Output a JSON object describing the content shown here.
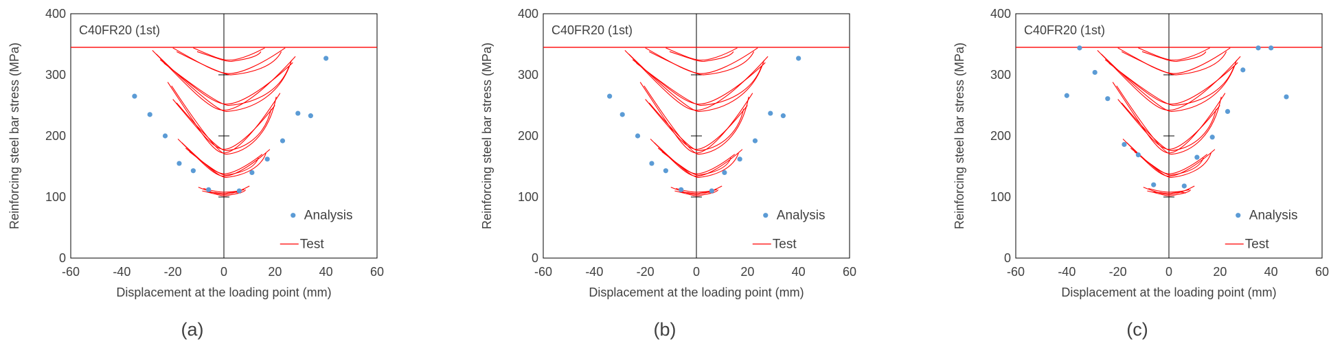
{
  "figure": {
    "panel_labels": [
      "(a)",
      "(b)",
      "(c)"
    ]
  },
  "chart_data": [
    {
      "type": "scatter",
      "panel": "(a)",
      "title": "C40FR20 (1st)",
      "xlabel": "Displacement at the loading point (mm)",
      "ylabel": "Reinforcing steel bar stress (MPa)",
      "xlim": [
        -60,
        60
      ],
      "ylim": [
        0,
        400
      ],
      "xticks": [
        -60,
        -40,
        -20,
        0,
        20,
        40,
        60
      ],
      "yticks": [
        0,
        100,
        200,
        300,
        400
      ],
      "yield_line": 345,
      "legend": [
        "Analysis",
        "Test"
      ],
      "legend_position": "bottom-right",
      "series": [
        {
          "name": "Analysis",
          "kind": "markers",
          "color": "#5b9bd5",
          "x": [
            -35,
            -29,
            -23,
            -17.5,
            -12,
            -6,
            6,
            11,
            17,
            23,
            29,
            34,
            40
          ],
          "y": [
            265,
            235,
            200,
            155,
            143,
            112,
            110,
            140,
            162,
            192,
            237,
            233,
            327
          ]
        },
        {
          "name": "Test",
          "kind": "hysteresis",
          "color": "#ff0000",
          "loops": [
            {
              "xmin": -10,
              "xmax": 10,
              "bottom": 102,
              "top": 118,
              "left_top": 116,
              "right_top": 118
            },
            {
              "xmin": -8,
              "xmax": 8,
              "bottom": 106,
              "top": 114,
              "left_top": 114,
              "right_top": 112
            },
            {
              "xmin": -18,
              "xmax": 18,
              "bottom": 132,
              "top": 195,
              "left_top": 195,
              "right_top": 178
            },
            {
              "xmin": -15,
              "xmax": 15,
              "bottom": 136,
              "top": 180,
              "left_top": 180,
              "right_top": 170
            },
            {
              "xmin": -22,
              "xmax": 22,
              "bottom": 170,
              "top": 288,
              "left_top": 288,
              "right_top": 270
            },
            {
              "xmin": -20,
              "xmax": 20,
              "bottom": 176,
              "top": 260,
              "left_top": 260,
              "right_top": 250
            },
            {
              "xmin": -28,
              "xmax": 28,
              "bottom": 240,
              "top": 340,
              "left_top": 340,
              "right_top": 330
            },
            {
              "xmin": -25,
              "xmax": 27,
              "bottom": 250,
              "top": 325,
              "left_top": 325,
              "right_top": 320
            },
            {
              "xmin": -20,
              "xmax": 24,
              "bottom": 300,
              "top": 344,
              "left_top": 344,
              "right_top": 344
            },
            {
              "xmin": -12,
              "xmax": 16,
              "bottom": 322,
              "top": 344,
              "left_top": 344,
              "right_top": 344
            }
          ]
        }
      ]
    },
    {
      "type": "scatter",
      "panel": "(b)",
      "title": "C40FR20 (1st)",
      "xlabel": "Displacement at the loading point (mm)",
      "ylabel": "Reinforcing steel bar stress (MPa)",
      "xlim": [
        -60,
        60
      ],
      "ylim": [
        0,
        400
      ],
      "xticks": [
        -60,
        -40,
        -20,
        0,
        20,
        40,
        60
      ],
      "yticks": [
        0,
        100,
        200,
        300,
        400
      ],
      "yield_line": 345,
      "legend": [
        "Analysis",
        "Test"
      ],
      "legend_position": "bottom-right",
      "series": [
        {
          "name": "Analysis",
          "kind": "markers",
          "color": "#5b9bd5",
          "x": [
            -34,
            -29,
            -23,
            -17.5,
            -12,
            -6,
            6,
            11,
            17,
            23,
            29,
            34,
            40
          ],
          "y": [
            265,
            235,
            200,
            155,
            143,
            112,
            110,
            140,
            162,
            192,
            237,
            233,
            327
          ]
        },
        {
          "name": "Test",
          "kind": "hysteresis",
          "color": "#ff0000",
          "loops": [
            {
              "xmin": -10,
              "xmax": 10,
              "bottom": 102,
              "top": 118,
              "left_top": 116,
              "right_top": 118
            },
            {
              "xmin": -8,
              "xmax": 8,
              "bottom": 106,
              "top": 114,
              "left_top": 114,
              "right_top": 112
            },
            {
              "xmin": -18,
              "xmax": 18,
              "bottom": 132,
              "top": 195,
              "left_top": 195,
              "right_top": 178
            },
            {
              "xmin": -15,
              "xmax": 15,
              "bottom": 136,
              "top": 180,
              "left_top": 180,
              "right_top": 170
            },
            {
              "xmin": -22,
              "xmax": 22,
              "bottom": 170,
              "top": 288,
              "left_top": 288,
              "right_top": 270
            },
            {
              "xmin": -20,
              "xmax": 20,
              "bottom": 176,
              "top": 260,
              "left_top": 260,
              "right_top": 250
            },
            {
              "xmin": -28,
              "xmax": 28,
              "bottom": 240,
              "top": 340,
              "left_top": 340,
              "right_top": 330
            },
            {
              "xmin": -25,
              "xmax": 27,
              "bottom": 250,
              "top": 325,
              "left_top": 325,
              "right_top": 320
            },
            {
              "xmin": -20,
              "xmax": 24,
              "bottom": 300,
              "top": 344,
              "left_top": 344,
              "right_top": 344
            },
            {
              "xmin": -12,
              "xmax": 16,
              "bottom": 322,
              "top": 344,
              "left_top": 344,
              "right_top": 344
            }
          ]
        }
      ]
    },
    {
      "type": "scatter",
      "panel": "(c)",
      "title": "C40FR20 (1st)",
      "xlabel": "Displacement at the loading point (mm)",
      "ylabel": "Reinforcing steel bar stress (MPa)",
      "xlim": [
        -60,
        60
      ],
      "ylim": [
        0,
        400
      ],
      "xticks": [
        -60,
        -40,
        -20,
        0,
        20,
        40,
        60
      ],
      "yticks": [
        0,
        100,
        200,
        300,
        400
      ],
      "yield_line": 345,
      "legend": [
        "Analysis",
        "Test"
      ],
      "legend_position": "bottom-right",
      "series": [
        {
          "name": "Analysis",
          "kind": "markers",
          "color": "#5b9bd5",
          "x": [
            -40,
            -35,
            -29,
            -24,
            -17.5,
            -12,
            -6,
            6,
            11,
            17,
            23,
            29,
            35,
            40,
            46
          ],
          "y": [
            266,
            344,
            304,
            261,
            186,
            169,
            120,
            118,
            165,
            198,
            240,
            308,
            344,
            344,
            264
          ]
        },
        {
          "name": "Test",
          "kind": "hysteresis",
          "color": "#ff0000",
          "loops": [
            {
              "xmin": -10,
              "xmax": 10,
              "bottom": 102,
              "top": 118,
              "left_top": 116,
              "right_top": 118
            },
            {
              "xmin": -8,
              "xmax": 8,
              "bottom": 106,
              "top": 114,
              "left_top": 114,
              "right_top": 112
            },
            {
              "xmin": -18,
              "xmax": 18,
              "bottom": 132,
              "top": 195,
              "left_top": 195,
              "right_top": 178
            },
            {
              "xmin": -15,
              "xmax": 15,
              "bottom": 136,
              "top": 180,
              "left_top": 180,
              "right_top": 170
            },
            {
              "xmin": -22,
              "xmax": 22,
              "bottom": 170,
              "top": 288,
              "left_top": 288,
              "right_top": 270
            },
            {
              "xmin": -20,
              "xmax": 20,
              "bottom": 176,
              "top": 260,
              "left_top": 260,
              "right_top": 250
            },
            {
              "xmin": -28,
              "xmax": 28,
              "bottom": 240,
              "top": 340,
              "left_top": 340,
              "right_top": 330
            },
            {
              "xmin": -25,
              "xmax": 27,
              "bottom": 250,
              "top": 325,
              "left_top": 325,
              "right_top": 320
            },
            {
              "xmin": -20,
              "xmax": 24,
              "bottom": 300,
              "top": 344,
              "left_top": 344,
              "right_top": 344
            },
            {
              "xmin": -12,
              "xmax": 16,
              "bottom": 322,
              "top": 344,
              "left_top": 344,
              "right_top": 344
            }
          ]
        }
      ]
    }
  ]
}
